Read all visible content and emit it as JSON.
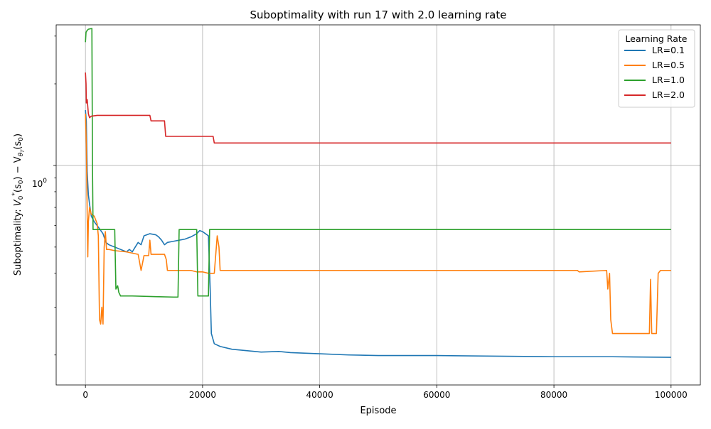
{
  "chart_data": {
    "type": "line",
    "title": "Suboptimality with run 17 with 2.0 learning rate",
    "xlabel": "Episode",
    "ylabel": "Suboptimality: V₀*(s₀) − V₀θ(s₀)",
    "ylabel_parts": {
      "prefix": "Suboptimality: ",
      "v": "V",
      "sub0": "0",
      "star": "*",
      "s0a": "(s",
      "s0a_sub": "0",
      "close_a": ")",
      "minus": " − V",
      "sub_theta": "θ",
      "theta_sub": "T",
      "s0b": "(s",
      "s0b_sub": "0",
      "close_b": ")"
    },
    "yscale": "log",
    "xlim": [
      -5000,
      105000
    ],
    "ylim": [
      0.155,
      3.3
    ],
    "xticks": [
      0,
      20000,
      40000,
      60000,
      80000,
      100000
    ],
    "xtick_labels": [
      "0",
      "20000",
      "40000",
      "60000",
      "80000",
      "100000"
    ],
    "yticks": [
      1
    ],
    "ytick_labels": [
      "10⁰"
    ],
    "ytick_label_parts": {
      "base": "10",
      "exp": "0"
    },
    "grid": true,
    "legend": {
      "title": "Learning Rate",
      "position": "top-right"
    },
    "series": [
      {
        "name": "LR=0.1",
        "color": "#1f77b4",
        "points": [
          [
            0,
            1.6
          ],
          [
            150,
            1.45
          ],
          [
            300,
            0.95
          ],
          [
            500,
            0.78
          ],
          [
            700,
            0.72
          ],
          [
            1000,
            0.65
          ],
          [
            1500,
            0.62
          ],
          [
            2000,
            0.6
          ],
          [
            2500,
            0.58
          ],
          [
            3000,
            0.56
          ],
          [
            3500,
            0.52
          ],
          [
            4000,
            0.51
          ],
          [
            5000,
            0.5
          ],
          [
            6000,
            0.49
          ],
          [
            6500,
            0.485
          ],
          [
            7000,
            0.48
          ],
          [
            7500,
            0.49
          ],
          [
            8000,
            0.48
          ],
          [
            8500,
            0.5
          ],
          [
            9000,
            0.52
          ],
          [
            9500,
            0.51
          ],
          [
            10000,
            0.55
          ],
          [
            11000,
            0.56
          ],
          [
            12000,
            0.555
          ],
          [
            12500,
            0.545
          ],
          [
            13000,
            0.53
          ],
          [
            13500,
            0.51
          ],
          [
            14000,
            0.52
          ],
          [
            15000,
            0.525
          ],
          [
            16000,
            0.53
          ],
          [
            17000,
            0.535
          ],
          [
            18000,
            0.545
          ],
          [
            19000,
            0.56
          ],
          [
            19500,
            0.575
          ],
          [
            20000,
            0.57
          ],
          [
            20500,
            0.56
          ],
          [
            21000,
            0.55
          ],
          [
            21300,
            0.35
          ],
          [
            21500,
            0.24
          ],
          [
            22000,
            0.22
          ],
          [
            23000,
            0.215
          ],
          [
            25000,
            0.21
          ],
          [
            30000,
            0.205
          ],
          [
            33000,
            0.206
          ],
          [
            35000,
            0.204
          ],
          [
            40000,
            0.202
          ],
          [
            45000,
            0.2
          ],
          [
            50000,
            0.199
          ],
          [
            60000,
            0.199
          ],
          [
            70000,
            0.198
          ],
          [
            80000,
            0.197
          ],
          [
            90000,
            0.197
          ],
          [
            100000,
            0.196
          ]
        ]
      },
      {
        "name": "LR=0.5",
        "color": "#ff7f0e",
        "points": [
          [
            0,
            1.55
          ],
          [
            150,
            1.2
          ],
          [
            300,
            0.65
          ],
          [
            400,
            0.46
          ],
          [
            500,
            0.62
          ],
          [
            700,
            0.7
          ],
          [
            1000,
            0.66
          ],
          [
            1500,
            0.65
          ],
          [
            2000,
            0.61
          ],
          [
            2200,
            0.55
          ],
          [
            2400,
            0.27
          ],
          [
            2600,
            0.26
          ],
          [
            2800,
            0.3
          ],
          [
            3000,
            0.26
          ],
          [
            3200,
            0.5
          ],
          [
            3400,
            0.57
          ],
          [
            3600,
            0.49
          ],
          [
            4000,
            0.49
          ],
          [
            5000,
            0.485
          ],
          [
            7000,
            0.48
          ],
          [
            9000,
            0.47
          ],
          [
            9500,
            0.41
          ],
          [
            10000,
            0.465
          ],
          [
            10800,
            0.465
          ],
          [
            11000,
            0.53
          ],
          [
            11200,
            0.47
          ],
          [
            13500,
            0.47
          ],
          [
            13800,
            0.45
          ],
          [
            14000,
            0.41
          ],
          [
            16000,
            0.41
          ],
          [
            17000,
            0.41
          ],
          [
            18000,
            0.41
          ],
          [
            19000,
            0.405
          ],
          [
            20000,
            0.405
          ],
          [
            21000,
            0.4
          ],
          [
            22000,
            0.4
          ],
          [
            22500,
            0.55
          ],
          [
            22800,
            0.5
          ],
          [
            23000,
            0.41
          ],
          [
            24000,
            0.41
          ],
          [
            26000,
            0.41
          ],
          [
            30000,
            0.41
          ],
          [
            40000,
            0.41
          ],
          [
            50000,
            0.41
          ],
          [
            60000,
            0.41
          ],
          [
            70000,
            0.41
          ],
          [
            80000,
            0.41
          ],
          [
            84000,
            0.41
          ],
          [
            84300,
            0.405
          ],
          [
            89000,
            0.41
          ],
          [
            89200,
            0.35
          ],
          [
            89500,
            0.4
          ],
          [
            89700,
            0.27
          ],
          [
            90000,
            0.24
          ],
          [
            92000,
            0.24
          ],
          [
            95000,
            0.24
          ],
          [
            96000,
            0.24
          ],
          [
            96300,
            0.24
          ],
          [
            96500,
            0.38
          ],
          [
            96700,
            0.24
          ],
          [
            97000,
            0.24
          ],
          [
            97500,
            0.24
          ],
          [
            97800,
            0.4
          ],
          [
            98200,
            0.41
          ],
          [
            100000,
            0.41
          ]
        ]
      },
      {
        "name": "LR=1.0",
        "color": "#2ca02c",
        "points": [
          [
            0,
            2.85
          ],
          [
            100,
            3.1
          ],
          [
            300,
            3.15
          ],
          [
            500,
            3.18
          ],
          [
            1100,
            3.2
          ],
          [
            1200,
            1.0
          ],
          [
            1300,
            0.58
          ],
          [
            4500,
            0.58
          ],
          [
            5000,
            0.58
          ],
          [
            5200,
            0.35
          ],
          [
            5500,
            0.36
          ],
          [
            5700,
            0.34
          ],
          [
            6000,
            0.33
          ],
          [
            6500,
            0.33
          ],
          [
            8000,
            0.33
          ],
          [
            12000,
            0.328
          ],
          [
            15000,
            0.327
          ],
          [
            15800,
            0.327
          ],
          [
            16000,
            0.58
          ],
          [
            19000,
            0.58
          ],
          [
            19200,
            0.33
          ],
          [
            21000,
            0.33
          ],
          [
            21200,
            0.58
          ],
          [
            25000,
            0.58
          ],
          [
            30000,
            0.58
          ],
          [
            40000,
            0.58
          ],
          [
            50000,
            0.58
          ],
          [
            60000,
            0.58
          ],
          [
            70000,
            0.58
          ],
          [
            80000,
            0.58
          ],
          [
            90000,
            0.58
          ],
          [
            100000,
            0.58
          ]
        ]
      },
      {
        "name": "LR=2.0",
        "color": "#d62728",
        "points": [
          [
            0,
            2.2
          ],
          [
            100,
            2.0
          ],
          [
            150,
            1.7
          ],
          [
            300,
            1.75
          ],
          [
            500,
            1.55
          ],
          [
            700,
            1.5
          ],
          [
            1000,
            1.52
          ],
          [
            2000,
            1.53
          ],
          [
            3000,
            1.53
          ],
          [
            5000,
            1.53
          ],
          [
            8000,
            1.53
          ],
          [
            11000,
            1.53
          ],
          [
            11200,
            1.46
          ],
          [
            13500,
            1.46
          ],
          [
            13700,
            1.28
          ],
          [
            18000,
            1.28
          ],
          [
            21800,
            1.28
          ],
          [
            22000,
            1.21
          ],
          [
            25000,
            1.21
          ],
          [
            30000,
            1.21
          ],
          [
            40000,
            1.21
          ],
          [
            50000,
            1.21
          ],
          [
            60000,
            1.21
          ],
          [
            70000,
            1.21
          ],
          [
            80000,
            1.21
          ],
          [
            90000,
            1.21
          ],
          [
            100000,
            1.21
          ]
        ]
      }
    ]
  }
}
